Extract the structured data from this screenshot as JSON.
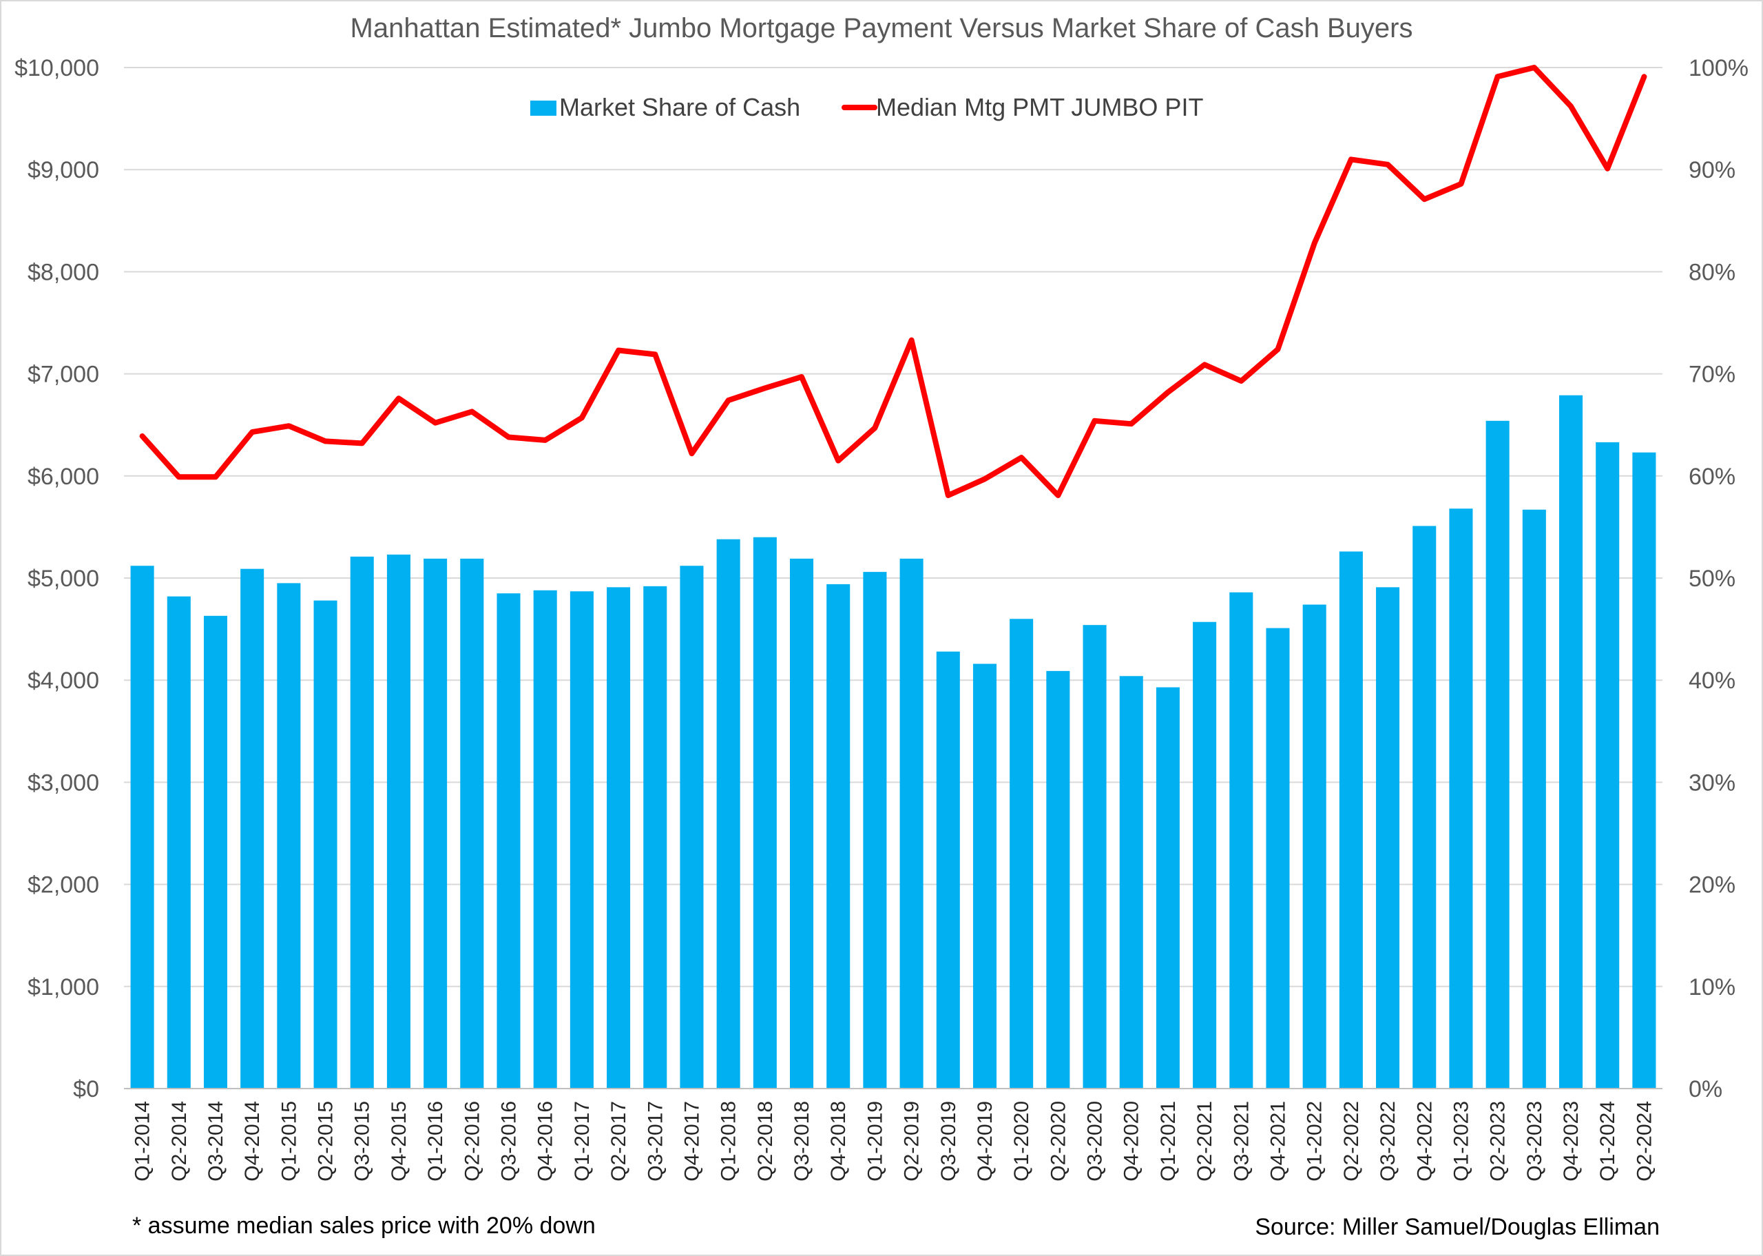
{
  "chart_data": {
    "type": "bar",
    "title": "Manhattan Estimated* Jumbo Mortgage Payment Versus Market Share of Cash Buyers",
    "categories": [
      "Q1-2014",
      "Q2-2014",
      "Q3-2014",
      "Q4-2014",
      "Q1-2015",
      "Q2-2015",
      "Q3-2015",
      "Q4-2015",
      "Q1-2016",
      "Q2-2016",
      "Q3-2016",
      "Q4-2016",
      "Q1-2017",
      "Q2-2017",
      "Q3-2017",
      "Q4-2017",
      "Q1-2018",
      "Q2-2018",
      "Q3-2018",
      "Q4-2018",
      "Q1-2019",
      "Q2-2019",
      "Q3-2019",
      "Q4-2019",
      "Q1-2020",
      "Q2-2020",
      "Q3-2020",
      "Q4-2020",
      "Q1-2021",
      "Q2-2021",
      "Q3-2021",
      "Q4-2021",
      "Q1-2022",
      "Q2-2022",
      "Q3-2022",
      "Q4-2022",
      "Q1-2023",
      "Q2-2023",
      "Q3-2023",
      "Q4-2023",
      "Q1-2024",
      "Q2-2024"
    ],
    "series": [
      {
        "name": "Market Share of Cash",
        "type": "bar",
        "axis": "right",
        "color": "#00b0f0",
        "values": [
          51.2,
          48.2,
          46.3,
          50.9,
          49.5,
          47.8,
          52.1,
          52.3,
          51.9,
          51.9,
          48.5,
          48.8,
          48.7,
          49.1,
          49.2,
          51.2,
          53.8,
          54.0,
          51.9,
          49.4,
          50.6,
          51.9,
          42.8,
          41.6,
          46.0,
          40.9,
          45.4,
          40.4,
          39.3,
          45.7,
          48.6,
          45.1,
          47.4,
          52.6,
          49.1,
          55.1,
          56.8,
          65.4,
          56.7,
          67.9,
          63.3,
          62.3
        ]
      },
      {
        "name": "Median Mtg PMT JUMBO PIT",
        "type": "line",
        "axis": "left",
        "color": "#ff0000",
        "values": [
          6390,
          5990,
          5990,
          6430,
          6490,
          6340,
          6320,
          6760,
          6520,
          6630,
          6380,
          6350,
          6570,
          7230,
          7190,
          6220,
          6740,
          6860,
          6970,
          6150,
          6470,
          7330,
          5810,
          5970,
          6180,
          5810,
          6540,
          6510,
          6820,
          7090,
          6930,
          7240,
          8280,
          9100,
          9050,
          8710,
          8860,
          9910,
          10000,
          9620,
          9010,
          9910
        ]
      }
    ],
    "y_left": {
      "min": 0,
      "max": 10000,
      "ticks": [
        "$0",
        "$1,000",
        "$2,000",
        "$3,000",
        "$4,000",
        "$5,000",
        "$6,000",
        "$7,000",
        "$8,000",
        "$9,000",
        "$10,000"
      ]
    },
    "y_right": {
      "min": 0,
      "max": 100,
      "ticks": [
        "0%",
        "10%",
        "20%",
        "30%",
        "40%",
        "50%",
        "60%",
        "70%",
        "80%",
        "90%",
        "100%"
      ]
    },
    "grid": true,
    "legend_position": "top-center",
    "footnote": "* assume median sales price with 20% down",
    "source": "Source: Miller Samuel/Douglas Elliman"
  }
}
